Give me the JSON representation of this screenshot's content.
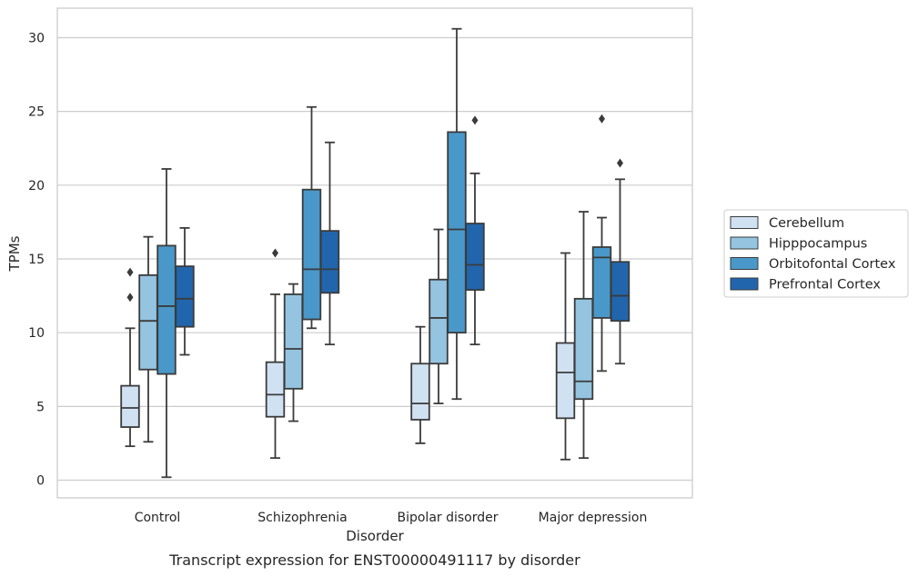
{
  "chart_data": {
    "type": "box",
    "caption": "Transcript expression for ENST00000491117 by disorder",
    "xlabel": "Disorder",
    "ylabel": "TPMs",
    "ylim": [
      -1.2,
      32
    ],
    "yticks": [
      0,
      5,
      10,
      15,
      20,
      25,
      30
    ],
    "grid": "horizontal",
    "legend_position": "right",
    "categories": [
      "Control",
      "Schizophrenia",
      "Bipolar disorder",
      "Major depression"
    ],
    "series": [
      {
        "name": "Cerebellum",
        "color": "#d0e1f2",
        "boxes": [
          {
            "whislo": 2.3,
            "q1": 3.6,
            "med": 4.9,
            "q3": 6.4,
            "whishi": 10.3,
            "fliers": [
              12.4,
              14.1
            ]
          },
          {
            "whislo": 1.5,
            "q1": 4.3,
            "med": 5.8,
            "q3": 8.0,
            "whishi": 12.6,
            "fliers": [
              15.4
            ]
          },
          {
            "whislo": 2.5,
            "q1": 4.1,
            "med": 5.2,
            "q3": 7.9,
            "whishi": 10.4,
            "fliers": []
          },
          {
            "whislo": 1.4,
            "q1": 4.2,
            "med": 7.3,
            "q3": 9.3,
            "whishi": 15.4,
            "fliers": []
          }
        ]
      },
      {
        "name": "Hipppocampus",
        "color": "#94c4df",
        "boxes": [
          {
            "whislo": 2.6,
            "q1": 7.5,
            "med": 10.8,
            "q3": 13.9,
            "whishi": 16.5,
            "fliers": []
          },
          {
            "whislo": 4.0,
            "q1": 6.2,
            "med": 8.9,
            "q3": 12.6,
            "whishi": 13.3,
            "fliers": []
          },
          {
            "whislo": 5.2,
            "q1": 7.9,
            "med": 11.0,
            "q3": 13.6,
            "whishi": 17.0,
            "fliers": []
          },
          {
            "whislo": 1.5,
            "q1": 5.5,
            "med": 6.7,
            "q3": 12.3,
            "whishi": 18.2,
            "fliers": []
          }
        ]
      },
      {
        "name": "Orbitofontal Cortex",
        "color": "#4a98c9",
        "boxes": [
          {
            "whislo": 0.2,
            "q1": 7.2,
            "med": 11.8,
            "q3": 15.9,
            "whishi": 21.1,
            "fliers": []
          },
          {
            "whislo": 10.3,
            "q1": 10.9,
            "med": 14.3,
            "q3": 19.7,
            "whishi": 25.3,
            "fliers": []
          },
          {
            "whislo": 5.5,
            "q1": 10.0,
            "med": 17.0,
            "q3": 23.6,
            "whishi": 30.6,
            "fliers": []
          },
          {
            "whislo": 7.4,
            "q1": 11.0,
            "med": 15.1,
            "q3": 15.8,
            "whishi": 17.8,
            "fliers": [
              24.5
            ]
          }
        ]
      },
      {
        "name": "Prefrontal Cortex",
        "color": "#2166ac",
        "boxes": [
          {
            "whislo": 8.5,
            "q1": 10.4,
            "med": 12.3,
            "q3": 14.5,
            "whishi": 17.1,
            "fliers": []
          },
          {
            "whislo": 9.2,
            "q1": 12.7,
            "med": 14.3,
            "q3": 16.9,
            "whishi": 22.9,
            "fliers": []
          },
          {
            "whislo": 9.2,
            "q1": 12.9,
            "med": 14.6,
            "q3": 17.4,
            "whishi": 20.8,
            "fliers": [
              24.4
            ]
          },
          {
            "whislo": 7.9,
            "q1": 10.8,
            "med": 12.5,
            "q3": 14.8,
            "whishi": 20.4,
            "fliers": [
              21.5
            ]
          }
        ]
      }
    ]
  }
}
